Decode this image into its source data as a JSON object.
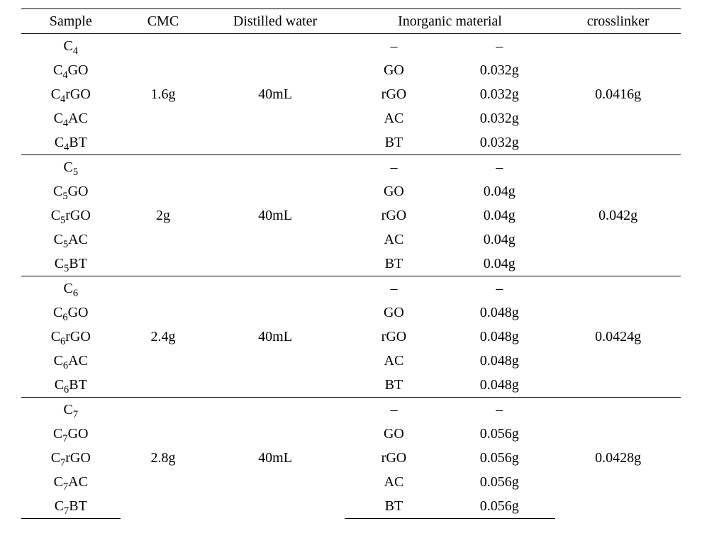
{
  "table": {
    "headers": {
      "sample": "Sample",
      "cmc": "CMC",
      "water": "Distilled water",
      "inorganic": "Inorganic material",
      "crosslinker": "crosslinker"
    },
    "materials": [
      "GO",
      "rGO",
      "AC",
      "BT"
    ],
    "dash": "–",
    "groups": [
      {
        "prefix": "C",
        "sub": "4",
        "cmc": "1.6g",
        "water": "40mL",
        "crosslinker": "0.0416g",
        "amounts": [
          "0.032g",
          "0.032g",
          "0.032g",
          "0.032g"
        ]
      },
      {
        "prefix": "C",
        "sub": "5",
        "cmc": "2g",
        "water": "40mL",
        "crosslinker": "0.042g",
        "amounts": [
          "0.04g",
          "0.04g",
          "0.04g",
          "0.04g"
        ]
      },
      {
        "prefix": "C",
        "sub": "6",
        "cmc": "2.4g",
        "water": "40mL",
        "crosslinker": "0.0424g",
        "amounts": [
          "0.048g",
          "0.048g",
          "0.048g",
          "0.048g"
        ]
      },
      {
        "prefix": "C",
        "sub": "7",
        "cmc": "2.8g",
        "water": "40mL",
        "crosslinker": "0.0428g",
        "amounts": [
          "0.056g",
          "0.056g",
          "0.056g",
          "0.056g"
        ]
      }
    ],
    "border_color": "#000000",
    "background": "#ffffff",
    "font_family": "Times New Roman, serif",
    "font_size_pt": 15
  }
}
